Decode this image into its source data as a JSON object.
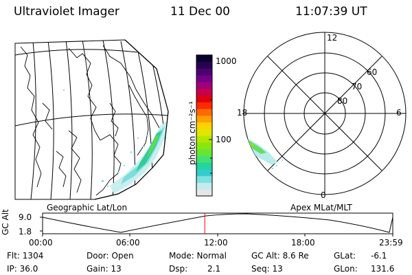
{
  "header": {
    "instrument": "Ultraviolet Imager",
    "date": "11 Dec 00",
    "time": "11:07:39 UT"
  },
  "geo_map": {
    "caption": "Geographic Lat/Lon"
  },
  "colorbar": {
    "unit_label": "photon cm⁻²s⁻¹",
    "tick_top": "1000",
    "tick_mid": "100",
    "colors": [
      "#e6e6e6",
      "#c4ecec",
      "#7fe0e0",
      "#33cccc",
      "#22d4a0",
      "#44e070",
      "#66e633",
      "#88e611",
      "#b4e600",
      "#e0e600",
      "#ffd200",
      "#ffa000",
      "#ff6a00",
      "#ff2a00",
      "#e00010",
      "#c8004a",
      "#a0007a",
      "#74008a",
      "#4c0070",
      "#2a0050",
      "#0a0030"
    ]
  },
  "polar_map": {
    "caption": "Apex MLat/MLT",
    "mlt_12": "12",
    "mlt_18": "18",
    "mlt_6": "6",
    "mlt_0": "0",
    "lat_60": "60",
    "lat_70": "70",
    "lat_80": "80"
  },
  "timeline": {
    "ylabel": "GC Alt",
    "y_top": "9.0",
    "y_bottom": "1.8",
    "ticks": [
      "00:00",
      "06:00",
      "12:00",
      "18:00",
      "23:59"
    ],
    "current_marker_time": "11:07",
    "marker_color": "#ff0000"
  },
  "info": {
    "flt": "Flt: 1304",
    "ip": "IP: 36.0",
    "door": "Door: Open",
    "gain": "Gain: 13",
    "mode": "Mode: Normal",
    "dsp_label": "Dsp:",
    "dsp_value": "2.1",
    "gc_alt": "GC Alt: 8.6 Re",
    "seq": "Seq: 13",
    "glat_label": "GLat:",
    "glat_value": "-6.1",
    "glon_label": "GLon:",
    "glon_value": "131.6"
  }
}
